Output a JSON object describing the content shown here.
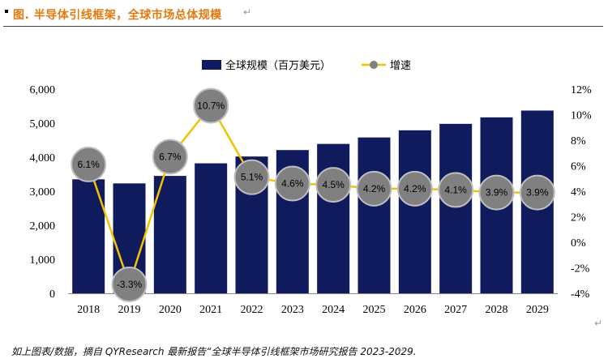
{
  "figure_title": "图.  半导体引线框架，全球市场总体规模",
  "paragraph_mark": "↵",
  "source": "如上图表/数据，摘自 QYResearch 最新报告“全球半导体引线框架市场研究报告 2023-2029.",
  "colors": {
    "bar": "#101b5e",
    "line": "#f2c300",
    "bubble": "#808080",
    "title": "#e27a10"
  },
  "chart_data": {
    "type": "bar",
    "categories": [
      "2018",
      "2019",
      "2020",
      "2021",
      "2022",
      "2023",
      "2024",
      "2025",
      "2026",
      "2027",
      "2028",
      "2029"
    ],
    "series": [
      {
        "name": "全球规模（百万美元）",
        "type": "bar",
        "axis": "left",
        "values": [
          3350,
          3230,
          3450,
          3820,
          4020,
          4210,
          4390,
          4580,
          4790,
          4980,
          5170,
          5370
        ]
      },
      {
        "name": "增速",
        "type": "line",
        "axis": "right",
        "values": [
          6.1,
          -3.3,
          6.7,
          10.7,
          5.1,
          4.6,
          4.5,
          4.2,
          4.2,
          4.1,
          3.9,
          3.9
        ],
        "labels": [
          "6.1%",
          "-3.3%",
          "6.7%",
          "10.7%",
          "5.1%",
          "4.6%",
          "4.5%",
          "4.2%",
          "4.2%",
          "4.1%",
          "3.9%",
          "3.9%"
        ]
      }
    ],
    "left_ticks": [
      "0",
      "1,000",
      "2,000",
      "3,000",
      "4,000",
      "5,000",
      "6,000"
    ],
    "right_ticks": [
      "-4%",
      "-2%",
      "0%",
      "2%",
      "4%",
      "6%",
      "8%",
      "10%",
      "12%"
    ],
    "ylim_left": [
      0,
      6000
    ],
    "ylim_right": [
      -4,
      12
    ],
    "legend_position": "top-center",
    "grid": false
  }
}
